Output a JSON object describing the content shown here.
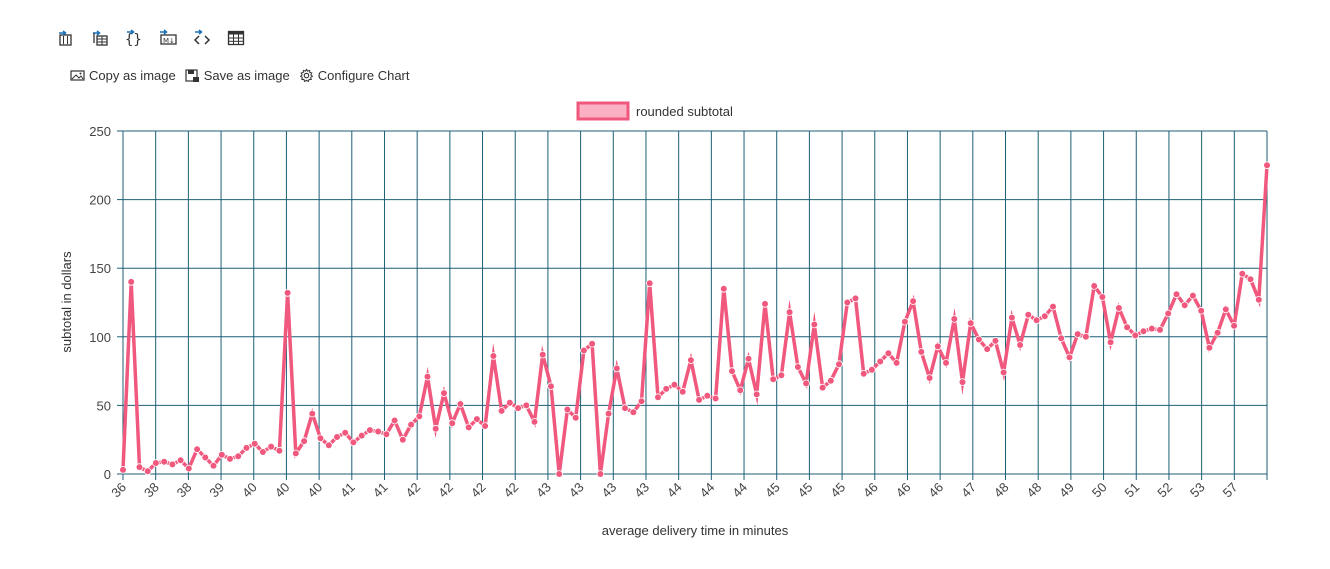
{
  "toolbar": {
    "icons": [
      "export-csv-icon",
      "export-excel-icon",
      "export-json-icon",
      "export-markdown-icon",
      "export-xml-icon",
      "table-view-icon"
    ]
  },
  "actions": {
    "copy_image": "Copy as image",
    "save_image": "Save as image",
    "configure_chart": "Configure Chart"
  },
  "colors": {
    "series": "#f0587e",
    "series_fill": "#fbb0c3",
    "grid": "#1c5f75"
  },
  "chart_data": {
    "type": "line",
    "title": "",
    "legend": {
      "label": "rounded subtotal",
      "position": "top"
    },
    "xlabel": "average delivery time in minutes",
    "ylabel": "subtotal in dollars",
    "ylim": [
      0,
      250
    ],
    "yticks": [
      0,
      50,
      100,
      150,
      200,
      250
    ],
    "grid": true,
    "xtick_labels": [
      "36",
      "38",
      "38",
      "39",
      "40",
      "40",
      "40",
      "41",
      "41",
      "42",
      "42",
      "42",
      "42",
      "43",
      "43",
      "43",
      "43",
      "44",
      "44",
      "44",
      "45",
      "45",
      "45",
      "46",
      "46",
      "46",
      "47",
      "48",
      "48",
      "49",
      "50",
      "51",
      "52",
      "53",
      "57"
    ],
    "series": [
      {
        "name": "rounded subtotal",
        "values": [
          3,
          140,
          5,
          2,
          8,
          9,
          7,
          10,
          4,
          18,
          12,
          6,
          14,
          11,
          13,
          19,
          22,
          16,
          20,
          17,
          132,
          15,
          24,
          44,
          26,
          21,
          27,
          30,
          23,
          28,
          32,
          31,
          29,
          39,
          25,
          36,
          42,
          71,
          33,
          59,
          37,
          51,
          34,
          40,
          35,
          86,
          46,
          52,
          48,
          50,
          38,
          87,
          64,
          0,
          47,
          41,
          90,
          95,
          0,
          44,
          77,
          48,
          45,
          53,
          139,
          56,
          62,
          65,
          60,
          83,
          54,
          57,
          55,
          135,
          75,
          61,
          84,
          58,
          124,
          69,
          72,
          118,
          78,
          66,
          109,
          63,
          68,
          80,
          125,
          128,
          73,
          76,
          82,
          88,
          81,
          111,
          126,
          89,
          70,
          93,
          81,
          113,
          67,
          110,
          98,
          91,
          97,
          74,
          114,
          94,
          116,
          112,
          115,
          122,
          99,
          85,
          102,
          100,
          137,
          129,
          96,
          121,
          107,
          101,
          104,
          106,
          105,
          117,
          131,
          123,
          130,
          119,
          92,
          103,
          120,
          108,
          146,
          142,
          127,
          225
        ]
      }
    ]
  }
}
